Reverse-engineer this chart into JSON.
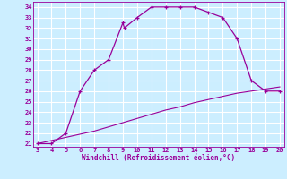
{
  "xlabel": "Windchill (Refroidissement éolien,°C)",
  "bg_color": "#cceeff",
  "grid_color": "#ffffff",
  "line_color": "#990099",
  "x_main": [
    3,
    4,
    5,
    6,
    7,
    8,
    9,
    9.1,
    10,
    11,
    12,
    13,
    14,
    15,
    16,
    17,
    18,
    19,
    20
  ],
  "y_main": [
    21,
    21,
    22,
    26,
    28,
    29,
    32.5,
    32.0,
    33,
    34,
    34,
    34,
    34,
    33.5,
    33,
    31,
    27,
    26,
    26
  ],
  "x_diag": [
    3,
    4,
    5,
    6,
    7,
    8,
    9,
    10,
    11,
    12,
    13,
    14,
    15,
    16,
    17,
    18,
    19,
    20
  ],
  "y_diag": [
    21.0,
    21.3,
    21.6,
    21.9,
    22.2,
    22.6,
    23.0,
    23.4,
    23.8,
    24.2,
    24.5,
    24.9,
    25.2,
    25.5,
    25.8,
    26.0,
    26.2,
    26.4
  ],
  "xlim": [
    2.7,
    20.3
  ],
  "ylim": [
    20.7,
    34.5
  ],
  "xticks": [
    3,
    4,
    5,
    6,
    7,
    8,
    9,
    10,
    11,
    12,
    13,
    14,
    15,
    16,
    17,
    18,
    19,
    20
  ],
  "yticks": [
    21,
    22,
    23,
    24,
    25,
    26,
    27,
    28,
    29,
    30,
    31,
    32,
    33,
    34
  ]
}
